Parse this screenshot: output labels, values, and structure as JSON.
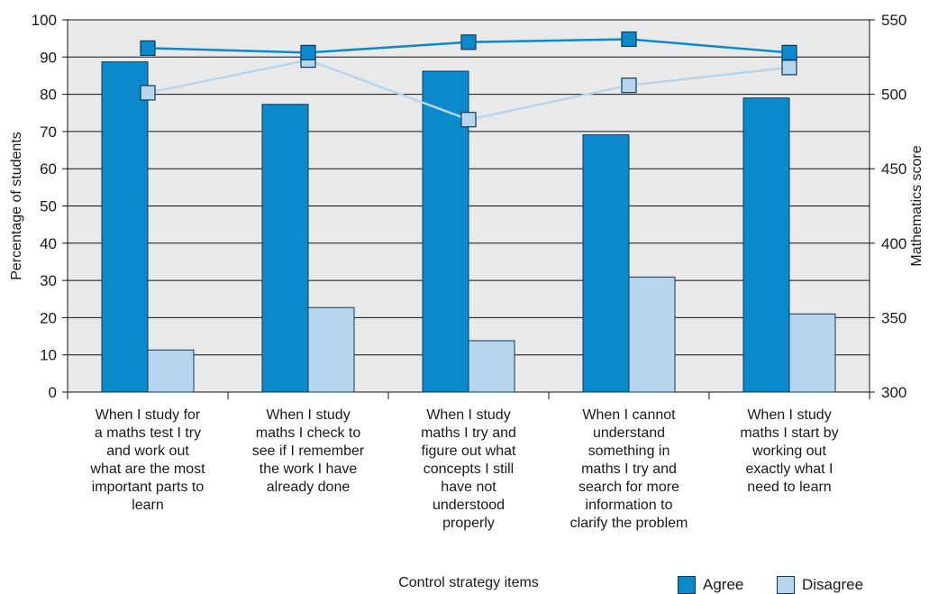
{
  "chart_data": {
    "type": "bar",
    "title": "",
    "xlabel": "Control strategy items",
    "ylabel": "Percentage of students",
    "y2label": "Mathematics score",
    "ylim": [
      0,
      100
    ],
    "y2lim": [
      300,
      550
    ],
    "yticks": [
      "0",
      "10",
      "20",
      "30",
      "40",
      "50",
      "60",
      "70",
      "80",
      "90",
      "100"
    ],
    "y2ticks": [
      "300",
      "350",
      "400",
      "450",
      "500",
      "550"
    ],
    "categories": [
      "When I study for a maths test I try and work out what are the most important parts to learn",
      "When I study maths I check to see if I remember the work I have already done",
      "When I study maths I try and figure out what concepts I still have not understood properly",
      "When I cannot understand something in maths I try and search for more information to clarify the problem",
      "When I study maths I start by working out exactly what I need to learn"
    ],
    "category_lines": [
      [
        "When I study for",
        "a maths test I try",
        "and work out",
        "what are the most",
        "important parts to",
        "learn"
      ],
      [
        "When I study",
        "maths I check to",
        "see if I remember",
        "the work I have",
        "already done"
      ],
      [
        "When I study",
        "maths I try and",
        "figure out what",
        "concepts I still",
        "have not",
        "understood",
        "properly"
      ],
      [
        "When I cannot",
        "understand",
        "something in",
        "maths I try and",
        "search for more",
        "information to",
        "clarify the problem"
      ],
      [
        "When I study",
        "maths I start by",
        "working out",
        "exactly what I",
        "need to learn"
      ]
    ],
    "series": [
      {
        "name": "Agree",
        "type": "bar",
        "axis": "left",
        "color": "#0a8acb",
        "values": [
          88.7,
          77.3,
          86.2,
          69.1,
          79.0
        ]
      },
      {
        "name": "Disagree",
        "type": "bar",
        "axis": "left",
        "color": "#b7d6ee",
        "values": [
          11.3,
          22.7,
          13.8,
          30.9,
          21.0
        ]
      },
      {
        "name": "Agree",
        "type": "line",
        "axis": "right",
        "color": "#0a8acb",
        "values": [
          531,
          528,
          535,
          537,
          528
        ]
      },
      {
        "name": "Disagree",
        "type": "line",
        "axis": "right",
        "color": "#b7d6ee",
        "values": [
          501,
          523,
          483,
          506,
          518
        ]
      }
    ],
    "legend": {
      "placement": "bottom-right",
      "items": [
        "Agree",
        "Disagree"
      ]
    },
    "grid": true,
    "background": "#e9e9e9"
  }
}
